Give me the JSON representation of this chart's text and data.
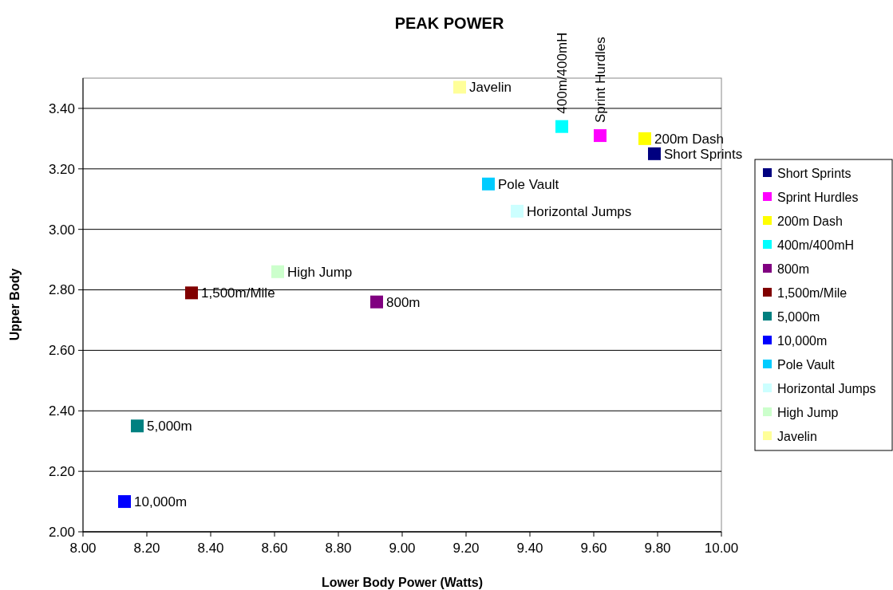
{
  "chart_data": {
    "type": "scatter",
    "title": "PEAK POWER",
    "xlabel": "Lower Body Power (Watts)",
    "ylabel": "Upper Body",
    "xlim": [
      8,
      10
    ],
    "xticks": [
      {
        "value": 8,
        "label": "8.00"
      },
      {
        "value": 8.2,
        "label": "8.20"
      },
      {
        "value": 8.4,
        "label": "8.40"
      },
      {
        "value": 8.6,
        "label": "8.60"
      },
      {
        "value": 8.8,
        "label": "8.80"
      },
      {
        "value": 9,
        "label": "9.00"
      },
      {
        "value": 9.2,
        "label": "9.20"
      },
      {
        "value": 9.4,
        "label": "9.40"
      },
      {
        "value": 9.6,
        "label": "9.60"
      },
      {
        "value": 9.8,
        "label": "9.80"
      },
      {
        "value": 10,
        "label": "10.00"
      }
    ],
    "ylim": [
      2,
      3.5
    ],
    "yticks": [
      {
        "value": 2,
        "label": "2.00"
      },
      {
        "value": 2.2,
        "label": "2.20"
      },
      {
        "value": 2.4,
        "label": "2.40"
      },
      {
        "value": 2.6,
        "label": "2.60"
      },
      {
        "value": 2.8,
        "label": "2.80"
      },
      {
        "value": 3,
        "label": "3.00"
      },
      {
        "value": 3.2,
        "label": "3.20"
      },
      {
        "value": 3.4,
        "label": "3.40"
      }
    ],
    "grid": "y",
    "legend": "right",
    "marker": "square",
    "series": [
      {
        "name": "Short Sprints",
        "color": "#000080",
        "x": [
          9.79
        ],
        "values": [
          3.25
        ]
      },
      {
        "name": "Sprint Hurdles",
        "color": "#ff00ff",
        "x": [
          9.62
        ],
        "values": [
          3.31
        ]
      },
      {
        "name": "200m Dash",
        "color": "#ffff00",
        "x": [
          9.76
        ],
        "values": [
          3.3
        ]
      },
      {
        "name": "400m/400mH",
        "color": "#00ffff",
        "x": [
          9.5
        ],
        "values": [
          3.34
        ]
      },
      {
        "name": "800m",
        "color": "#800080",
        "x": [
          8.92
        ],
        "values": [
          2.76
        ]
      },
      {
        "name": "1,500m/Mile",
        "color": "#800000",
        "x": [
          8.34
        ],
        "values": [
          2.79
        ]
      },
      {
        "name": "5,000m",
        "color": "#008080",
        "x": [
          8.17
        ],
        "values": [
          2.35
        ]
      },
      {
        "name": "10,000m",
        "color": "#0000ff",
        "x": [
          8.13
        ],
        "values": [
          2.1
        ]
      },
      {
        "name": "Pole Vault",
        "color": "#00ccff",
        "x": [
          9.27
        ],
        "values": [
          3.15
        ]
      },
      {
        "name": "Horizontal Jumps",
        "color": "#ccffff",
        "x": [
          9.36
        ],
        "values": [
          3.06
        ]
      },
      {
        "name": "High Jump",
        "color": "#ccffcc",
        "x": [
          8.61
        ],
        "values": [
          2.86
        ]
      },
      {
        "name": "Javelin",
        "color": "#ffff99",
        "x": [
          9.18
        ],
        "values": [
          3.47
        ]
      }
    ]
  }
}
